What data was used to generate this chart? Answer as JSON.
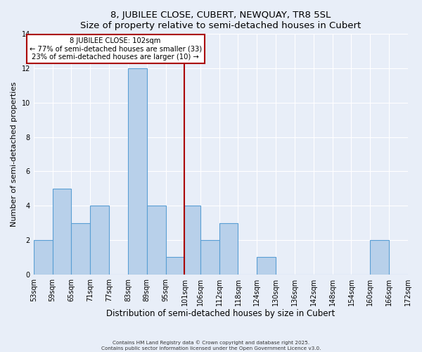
{
  "title": "8, JUBILEE CLOSE, CUBERT, NEWQUAY, TR8 5SL",
  "subtitle": "Size of property relative to semi-detached houses in Cubert",
  "xlabel": "Distribution of semi-detached houses by size in Cubert",
  "ylabel": "Number of semi-detached properties",
  "bar_left_edges": [
    53,
    59,
    65,
    71,
    77,
    83,
    89,
    95,
    101,
    106,
    112,
    118,
    124,
    130,
    136,
    142,
    148,
    154,
    160,
    166
  ],
  "bar_widths": [
    6,
    6,
    6,
    6,
    6,
    6,
    6,
    6,
    5,
    6,
    6,
    6,
    6,
    6,
    6,
    6,
    6,
    6,
    6,
    6
  ],
  "counts": [
    2,
    5,
    3,
    4,
    0,
    12,
    4,
    1,
    4,
    2,
    3,
    0,
    1,
    0,
    0,
    0,
    0,
    0,
    2,
    0
  ],
  "tick_labels": [
    "53sqm",
    "59sqm",
    "65sqm",
    "71sqm",
    "77sqm",
    "83sqm",
    "89sqm",
    "95sqm",
    "101sqm",
    "106sqm",
    "112sqm",
    "118sqm",
    "124sqm",
    "130sqm",
    "136sqm",
    "142sqm",
    "148sqm",
    "154sqm",
    "160sqm",
    "166sqm",
    "172sqm"
  ],
  "tick_positions": [
    53,
    59,
    65,
    71,
    77,
    83,
    89,
    95,
    101,
    106,
    112,
    118,
    124,
    130,
    136,
    142,
    148,
    154,
    160,
    166,
    172
  ],
  "xlim": [
    53,
    172
  ],
  "bar_color": "#b8d0ea",
  "bar_edge_color": "#5a9fd4",
  "vline_x": 101,
  "vline_color": "#aa0000",
  "annotation_title": "8 JUBILEE CLOSE: 102sqm",
  "annotation_line1": "← 77% of semi-detached houses are smaller (33)",
  "annotation_line2": "23% of semi-detached houses are larger (10) →",
  "annotation_box_color": "#ffffff",
  "annotation_box_edge": "#aa0000",
  "ylim": [
    0,
    14
  ],
  "yticks": [
    0,
    2,
    4,
    6,
    8,
    10,
    12,
    14
  ],
  "bg_color": "#e8eef8",
  "grid_color": "#ffffff",
  "footer_line1": "Contains HM Land Registry data © Crown copyright and database right 2025.",
  "footer_line2": "Contains public sector information licensed under the Open Government Licence v3.0."
}
